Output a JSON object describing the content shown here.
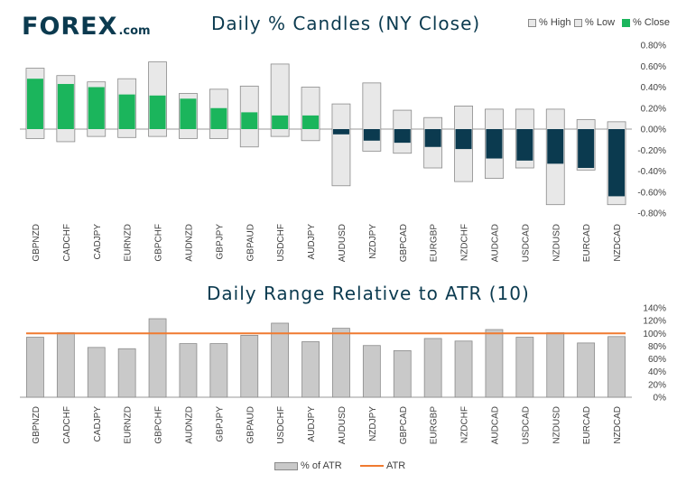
{
  "brand": {
    "name": "FOREX",
    "domain": ".com",
    "accent": "#1bb55c",
    "navy": "#0b3a4f"
  },
  "chart_data": [
    {
      "type": "candlestick-bar",
      "title": "Daily % Candles (NY Close)",
      "legend": {
        "high": "% High",
        "low": "% Low",
        "close": "% Close",
        "position": "top-right"
      },
      "categories": [
        "GBPNZD",
        "CADCHF",
        "CADJPY",
        "EURNZD",
        "GBPCHF",
        "AUDNZD",
        "GBPJPY",
        "GBPAUD",
        "USDCHF",
        "AUDJPY",
        "AUDUSD",
        "NZDJPY",
        "GBPCAD",
        "EURGBP",
        "NZDCHF",
        "AUDCAD",
        "USDCAD",
        "NZDUSD",
        "EURCAD",
        "NZDCAD"
      ],
      "series": [
        {
          "name": "% High",
          "values": [
            0.58,
            0.51,
            0.45,
            0.48,
            0.64,
            0.34,
            0.38,
            0.41,
            0.62,
            0.4,
            0.24,
            0.44,
            0.18,
            0.11,
            0.22,
            0.19,
            0.19,
            0.19,
            0.09,
            0.07
          ]
        },
        {
          "name": "% Low",
          "values": [
            -0.09,
            -0.12,
            -0.07,
            -0.08,
            -0.07,
            -0.09,
            -0.09,
            -0.17,
            -0.07,
            -0.11,
            -0.54,
            -0.21,
            -0.23,
            -0.37,
            -0.5,
            -0.47,
            -0.37,
            -0.72,
            -0.39,
            -0.72
          ]
        },
        {
          "name": "% Close",
          "values": [
            0.48,
            0.43,
            0.4,
            0.33,
            0.32,
            0.29,
            0.2,
            0.16,
            0.13,
            0.13,
            -0.05,
            -0.11,
            -0.13,
            -0.17,
            -0.19,
            -0.28,
            -0.3,
            -0.33,
            -0.37,
            -0.64
          ]
        }
      ],
      "ylim": [
        -0.8,
        0.8
      ],
      "yticks": [
        "0.80%",
        "0.60%",
        "0.40%",
        "0.20%",
        "0.00%",
        "-0.20%",
        "-0.40%",
        "-0.60%",
        "-0.80%"
      ],
      "colors": {
        "positive": "#1bb55c",
        "negative": "#0b3a4f",
        "range_fill": "#e8e8e8",
        "range_stroke": "#8a8a8a"
      }
    },
    {
      "type": "bar",
      "title": "Daily Range Relative to ATR (10)",
      "legend": {
        "bars": "% of ATR",
        "line": "ATR",
        "position": "bottom"
      },
      "categories": [
        "GBPNZD",
        "CADCHF",
        "CADJPY",
        "EURNZD",
        "GBPCHF",
        "AUDNZD",
        "GBPJPY",
        "GBPAUD",
        "USDCHF",
        "AUDJPY",
        "AUDUSD",
        "NZDJPY",
        "GBPCAD",
        "EURGBP",
        "NZDCHF",
        "AUDCAD",
        "USDCAD",
        "NZDUSD",
        "EURCAD",
        "NZDCAD"
      ],
      "values": [
        94,
        101,
        78,
        76,
        123,
        84,
        84,
        97,
        116,
        87,
        108,
        81,
        73,
        92,
        88,
        106,
        94,
        101,
        85,
        95
      ],
      "atr_line": 100,
      "ylim": [
        0,
        140
      ],
      "yticks": [
        "140%",
        "120%",
        "100%",
        "80%",
        "60%",
        "40%",
        "20%",
        "0%"
      ],
      "colors": {
        "bar_fill": "#c9c9c9",
        "bar_stroke": "#8a8a8a",
        "atr": "#f07a30"
      }
    }
  ]
}
